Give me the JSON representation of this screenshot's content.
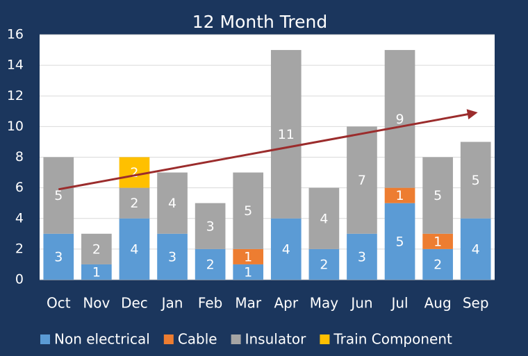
{
  "chart_data": {
    "type": "stacked_bar",
    "title": "12 Month Trend",
    "categories": [
      "Oct",
      "Nov",
      "Dec",
      "Jan",
      "Feb",
      "Mar",
      "Apr",
      "May",
      "Jun",
      "Jul",
      "Aug",
      "Sep"
    ],
    "series": [
      {
        "name": "Non electrical",
        "color": "#5b9bd5",
        "values": [
          3,
          1,
          4,
          3,
          2,
          1,
          4,
          2,
          3,
          5,
          2,
          4
        ]
      },
      {
        "name": "Cable",
        "color": "#ed7d31",
        "values": [
          null,
          null,
          null,
          null,
          null,
          1,
          null,
          null,
          null,
          1,
          1,
          null
        ]
      },
      {
        "name": "Insulator",
        "color": "#a5a5a5",
        "values": [
          5,
          2,
          2,
          4,
          3,
          5,
          11,
          4,
          7,
          9,
          5,
          5
        ]
      },
      {
        "name": "Train Component",
        "color": "#ffc000",
        "values": [
          null,
          null,
          2,
          null,
          null,
          null,
          null,
          null,
          null,
          null,
          null,
          null
        ]
      }
    ],
    "trend_line": {
      "color": "#9b2c2c",
      "values": [
        5.9,
        10.9
      ]
    },
    "ylim": [
      0,
      16
    ],
    "yticks": [
      0,
      2,
      4,
      6,
      8,
      10,
      12,
      14,
      16
    ],
    "grid": true,
    "legend": "bottom"
  }
}
